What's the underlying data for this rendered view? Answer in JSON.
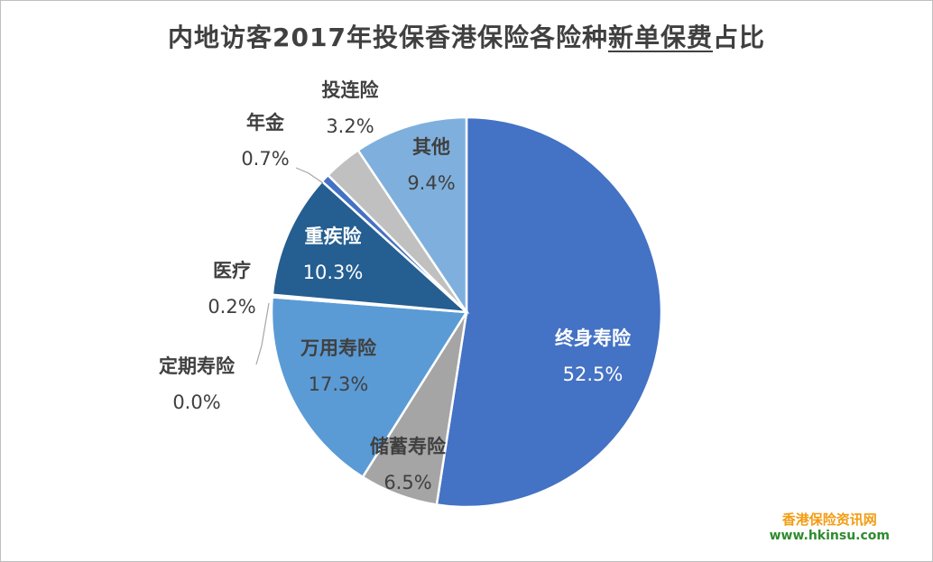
{
  "title": {
    "part1": "内地访客2017年投保香港保险各险种",
    "part2": "新单保费",
    "part3": "占比"
  },
  "watermark": {
    "line1": "香港保险资讯网",
    "line2": "www.hkinsu.com"
  },
  "colors": {
    "whole_life": "#4472c4",
    "savings": "#a5a5a5",
    "universal_life": "#5b9bd5",
    "critical_illness": "#255e91",
    "annuity": "#4472c4",
    "linked": "#c0c0c0",
    "other": "#7fb0dd"
  },
  "chart_data": {
    "type": "pie",
    "title": "内地访客2017年投保香港保险各险种新单保费占比",
    "start": "12 o'clock",
    "direction": "clockwise",
    "slices": [
      {
        "label": "终身寿险",
        "value": 52.5,
        "value_text": "52.5%",
        "color": "#4472c4"
      },
      {
        "label": "储蓄寿险",
        "value": 6.5,
        "value_text": "6.5%",
        "color": "#a5a5a5"
      },
      {
        "label": "定期寿险",
        "value": 0.0,
        "value_text": "0.0%",
        "color": "#70ad47"
      },
      {
        "label": "万用寿险",
        "value": 17.3,
        "value_text": "17.3%",
        "color": "#5b9bd5"
      },
      {
        "label": "医疗",
        "value": 0.2,
        "value_text": "0.2%",
        "color": "#264478"
      },
      {
        "label": "重疾险",
        "value": 10.3,
        "value_text": "10.3%",
        "color": "#255e91"
      },
      {
        "label": "年金",
        "value": 0.7,
        "value_text": "0.7%",
        "color": "#4472c4"
      },
      {
        "label": "投连险",
        "value": 3.2,
        "value_text": "3.2%",
        "color": "#c0c0c0"
      },
      {
        "label": "其他",
        "value": 9.4,
        "value_text": "9.4%",
        "color": "#7fb0dd"
      }
    ]
  }
}
